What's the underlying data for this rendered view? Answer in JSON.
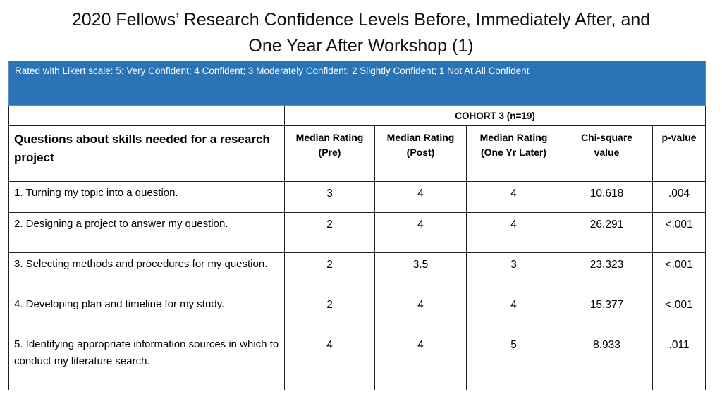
{
  "title": {
    "line1": "2020 Fellows’ Research Confidence Levels Before, Immediately After, and",
    "line2": "One Year After  Workshop (1)"
  },
  "banner": "Rated with Likert scale: 5: Very Confident; 4 Confident; 3 Moderately Confident; 2 Slightly Confident; 1 Not At All Confident",
  "cohort": "COHORT 3 (n=19)",
  "question_header": "Questions about skills needed for a research project",
  "columns": [
    {
      "line1": "Median Rating",
      "line2": "(Pre)"
    },
    {
      "line1": "Median Rating",
      "line2": "(Post)"
    },
    {
      "line1": "Median Rating",
      "line2": "(One Yr Later)"
    },
    {
      "line1": "Chi-square",
      "line2": "value"
    },
    {
      "line1": "p-value",
      "line2": ""
    }
  ],
  "rows": [
    {
      "question": "1. Turning my topic into a question.",
      "pre": "3",
      "post": "4",
      "one_yr": "4",
      "chi": "10.618",
      "p": ".004"
    },
    {
      "question": "2. Designing a project to answer my question.",
      "pre": "2",
      "post": "4",
      "one_yr": "4",
      "chi": "26.291",
      "p": "<.001"
    },
    {
      "question": "3. Selecting methods and procedures for my question.",
      "pre": "2",
      "post": "3.5",
      "one_yr": "3",
      "chi": "23.323",
      "p": "<.001"
    },
    {
      "question": "4. Developing plan and timeline for my study.",
      "pre": "2",
      "post": "4",
      "one_yr": "4",
      "chi": "15.377",
      "p": "<.001"
    },
    {
      "question": "5. Identifying appropriate information sources in which to conduct my literature search.",
      "pre": "4",
      "post": "4",
      "one_yr": "5",
      "chi": "8.933",
      "p": ".011"
    }
  ]
}
